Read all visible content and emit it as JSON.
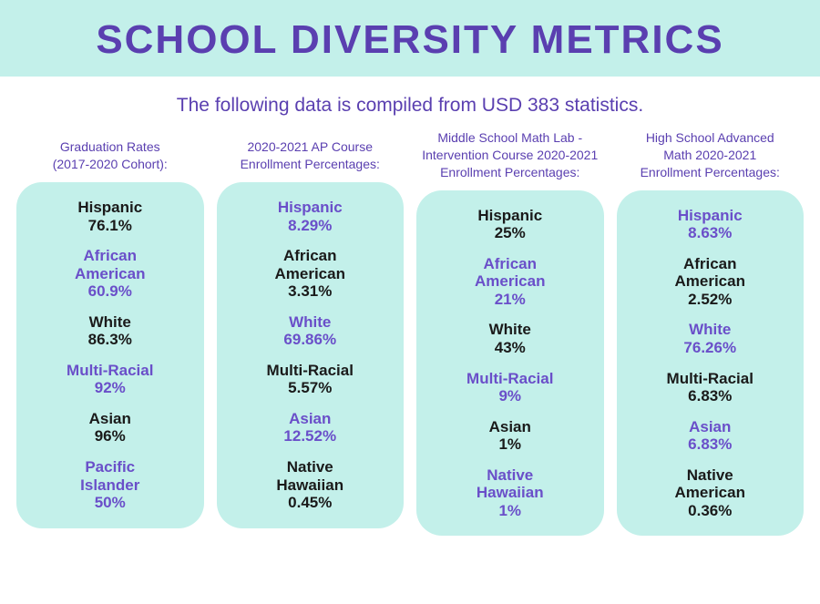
{
  "colors": {
    "band_bg": "#c3f0ea",
    "title": "#5a3fb0",
    "purple": "#6a4fc9",
    "black": "#1a1a1a",
    "page_bg": "#ffffff"
  },
  "title": "SCHOOL DIVERSITY METRICS",
  "subtitle": "The following data is compiled from USD 383 statistics.",
  "columns": [
    {
      "header": "Graduation Rates\n(2017-2020 Cohort):",
      "startPurple": false,
      "entries": [
        {
          "label": "Hispanic",
          "value": "76.1%"
        },
        {
          "label": "African\nAmerican",
          "value": "60.9%"
        },
        {
          "label": "White",
          "value": "86.3%"
        },
        {
          "label": "Multi-Racial",
          "value": "92%"
        },
        {
          "label": "Asian",
          "value": "96%"
        },
        {
          "label": "Pacific\nIslander",
          "value": "50%"
        }
      ]
    },
    {
      "header": "2020-2021 AP Course\nEnrollment Percentages:",
      "startPurple": true,
      "entries": [
        {
          "label": "Hispanic",
          "value": "8.29%"
        },
        {
          "label": "African\nAmerican",
          "value": "3.31%"
        },
        {
          "label": "White",
          "value": "69.86%"
        },
        {
          "label": "Multi-Racial",
          "value": "5.57%"
        },
        {
          "label": "Asian",
          "value": "12.52%"
        },
        {
          "label": "Native\nHawaiian",
          "value": "0.45%"
        }
      ]
    },
    {
      "header": "Middle School Math Lab -\nIntervention Course 2020-2021\nEnrollment Percentages:",
      "startPurple": false,
      "entries": [
        {
          "label": "Hispanic",
          "value": "25%"
        },
        {
          "label": "African\nAmerican",
          "value": "21%"
        },
        {
          "label": "White",
          "value": "43%"
        },
        {
          "label": "Multi-Racial",
          "value": "9%"
        },
        {
          "label": "Asian",
          "value": "1%"
        },
        {
          "label": "Native\nHawaiian",
          "value": "1%"
        }
      ]
    },
    {
      "header": "High School Advanced\nMath 2020-2021\nEnrollment Percentages:",
      "startPurple": true,
      "entries": [
        {
          "label": "Hispanic",
          "value": "8.63%"
        },
        {
          "label": "African\nAmerican",
          "value": "2.52%"
        },
        {
          "label": "White",
          "value": "76.26%"
        },
        {
          "label": "Multi-Racial",
          "value": "6.83%"
        },
        {
          "label": "Asian",
          "value": "6.83%"
        },
        {
          "label": "Native\nAmerican",
          "value": "0.36%"
        }
      ]
    }
  ]
}
